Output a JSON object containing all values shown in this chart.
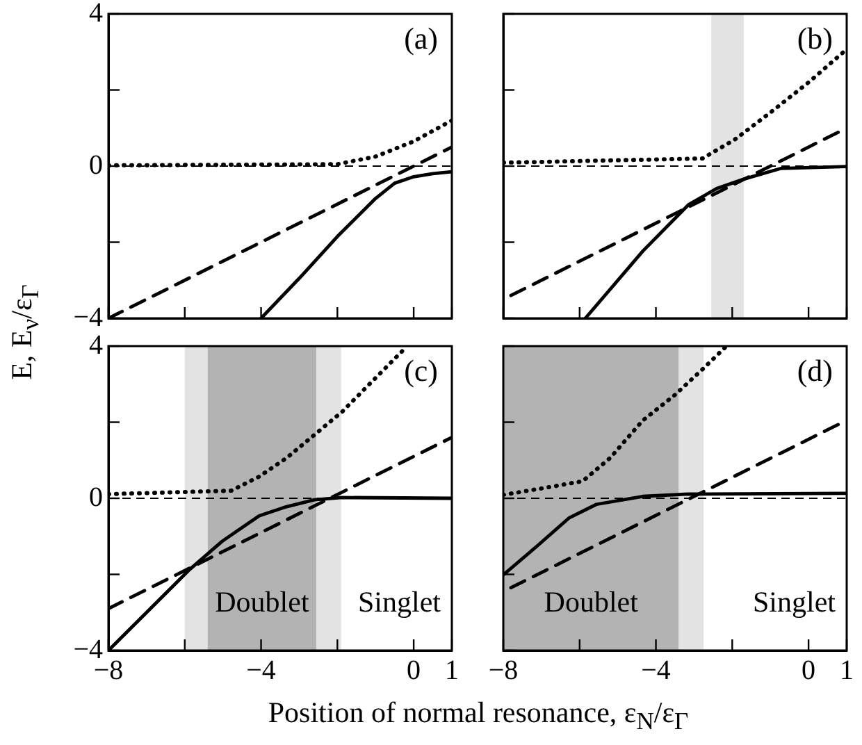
{
  "chart_data": [
    {
      "type": "line",
      "title": "(a)",
      "ylabel": "E, E$_{ν}$/ε$_{Γ}$",
      "xlim": [
        -8,
        1
      ],
      "ylim": [
        -4,
        4
      ],
      "xticks": [
        {
          "value": -8,
          "label": null
        },
        {
          "value": -6,
          "label": null
        },
        {
          "value": -4,
          "label": null
        },
        {
          "value": -2,
          "label": null
        },
        {
          "value": 0,
          "label": null
        },
        {
          "value": 1,
          "label": null
        }
      ],
      "yticks": [
        {
          "value": -4,
          "label": "−4"
        },
        {
          "value": -2,
          "label": null
        },
        {
          "value": 0,
          "label": "0"
        },
        {
          "value": 2,
          "label": null
        },
        {
          "value": 4,
          "label": "4"
        }
      ],
      "tick_labels": "y",
      "grid": false,
      "legend": false,
      "marker": "none",
      "ref_lines": [
        {
          "axis": "y",
          "value": 0,
          "color": "#000000",
          "line_style": "dashed"
        }
      ],
      "series": [
        {
          "type": "line",
          "color": "#000000",
          "line_style": "solid",
          "x": [
            -4,
            -3,
            -2,
            -1,
            -0.5,
            0,
            0.5,
            1
          ],
          "values": [
            -4,
            -2.95,
            -1.85,
            -0.85,
            -0.45,
            -0.28,
            -0.2,
            -0.15
          ]
        },
        {
          "type": "line",
          "color": "#000000",
          "line_style": "dashed",
          "x": [
            -8,
            1
          ],
          "values": [
            -4,
            0.5
          ]
        },
        {
          "type": "line",
          "color": "#000000",
          "line_style": "dotted",
          "x": [
            -8,
            -2,
            -1,
            0,
            1
          ],
          "values": [
            0.02,
            0.05,
            0.25,
            0.65,
            1.2
          ]
        }
      ]
    },
    {
      "type": "line",
      "title": "(b)",
      "xlim": [
        -8,
        1
      ],
      "ylim": [
        -4,
        4
      ],
      "xticks": [
        {
          "value": -8,
          "label": null
        },
        {
          "value": -6,
          "label": null
        },
        {
          "value": -4,
          "label": null
        },
        {
          "value": -2,
          "label": null
        },
        {
          "value": 0,
          "label": null
        },
        {
          "value": 1,
          "label": null
        }
      ],
      "yticks": [
        {
          "value": -4,
          "label": null
        },
        {
          "value": -2,
          "label": null
        },
        {
          "value": 0,
          "label": null
        },
        {
          "value": 2,
          "label": null
        },
        {
          "value": 4,
          "label": null
        }
      ],
      "tick_labels": false,
      "grid": false,
      "legend": false,
      "marker": "none",
      "ref_lines": [
        {
          "axis": "y",
          "value": 0,
          "color": "#000000",
          "line_style": "dashed"
        }
      ],
      "bands": [
        {
          "axis": "x",
          "from": -2.55,
          "to": -1.7,
          "color": "#e3e3e3"
        }
      ],
      "series": [
        {
          "type": "line",
          "color": "#000000",
          "line_style": "solid",
          "x": [
            -5.85,
            -4.34,
            -3.14,
            -2.41,
            -1.69,
            -0.72,
            1
          ],
          "values": [
            -4,
            -2.23,
            -1.01,
            -0.59,
            -0.34,
            -0.06,
            -0.01
          ]
        },
        {
          "type": "line",
          "color": "#000000",
          "line_style": "dashed",
          "x": [
            -7.8,
            1
          ],
          "values": [
            -3.4,
            1
          ]
        },
        {
          "type": "line",
          "color": "#000000",
          "line_style": "dotted",
          "x": [
            -8,
            -2.78,
            -1.93,
            -0.97,
            0,
            1
          ],
          "values": [
            0.09,
            0.2,
            0.7,
            1.43,
            2.2,
            3.07
          ]
        }
      ]
    },
    {
      "type": "line",
      "title": "(c)",
      "xlabel": "Position of normal resonance, ε$_{N}$/ε$_{Γ}$",
      "xlim": [
        -8,
        1
      ],
      "ylim": [
        -4,
        4
      ],
      "xticks": [
        {
          "value": -8,
          "label": "−8"
        },
        {
          "value": -6,
          "label": null
        },
        {
          "value": -4,
          "label": "−4"
        },
        {
          "value": -2,
          "label": null
        },
        {
          "value": 0,
          "label": "0"
        },
        {
          "value": 1,
          "label": "1"
        }
      ],
      "yticks": [
        {
          "value": -4,
          "label": "−4"
        },
        {
          "value": -2,
          "label": null
        },
        {
          "value": 0,
          "label": "0"
        },
        {
          "value": 2,
          "label": null
        },
        {
          "value": 4,
          "label": "4"
        }
      ],
      "grid": false,
      "legend": false,
      "marker": "none",
      "ref_lines": [
        {
          "axis": "y",
          "value": 0,
          "color": "#000000",
          "line_style": "dashed"
        }
      ],
      "bands": [
        {
          "axis": "x",
          "from": -6,
          "to": -5.4,
          "color": "#e3e3e3"
        },
        {
          "axis": "x",
          "from": -5.4,
          "to": -2.55,
          "color": "#b3b3b3",
          "label": "Doublet"
        },
        {
          "axis": "x",
          "from": -2.55,
          "to": -1.9,
          "color": "#e3e3e3"
        }
      ],
      "annotations": [
        "Singlet"
      ],
      "series": [
        {
          "type": "line",
          "color": "#000000",
          "line_style": "solid",
          "x": [
            -8,
            -5.87,
            -5.02,
            -4.05,
            -3.33,
            -2.6,
            -1.87,
            1
          ],
          "values": [
            -4,
            -1.87,
            -1.13,
            -0.46,
            -0.22,
            -0.04,
            0.02,
            0
          ]
        },
        {
          "type": "line",
          "color": "#000000",
          "line_style": "dashed",
          "x": [
            -8,
            1
          ],
          "values": [
            -2.9,
            1.6
          ]
        },
        {
          "type": "line",
          "color": "#000000",
          "line_style": "dotted",
          "x": [
            -8,
            -4.78,
            -4.05,
            -3.33,
            -2.6,
            -1.87,
            -1.15,
            -0.18
          ],
          "values": [
            0.11,
            0.2,
            0.57,
            1.06,
            1.67,
            2.28,
            3.01,
            3.99
          ]
        }
      ]
    },
    {
      "type": "line",
      "title": "(d)",
      "xlim": [
        -8,
        1
      ],
      "ylim": [
        -4,
        4
      ],
      "xticks": [
        {
          "value": -8,
          "label": "−8"
        },
        {
          "value": -6,
          "label": null
        },
        {
          "value": -4,
          "label": "−4"
        },
        {
          "value": -2,
          "label": null
        },
        {
          "value": 0,
          "label": "0"
        },
        {
          "value": 1,
          "label": "1"
        }
      ],
      "yticks": [
        {
          "value": -4,
          "label": null
        },
        {
          "value": -2,
          "label": null
        },
        {
          "value": 0,
          "label": null
        },
        {
          "value": 2,
          "label": null
        },
        {
          "value": 4,
          "label": null
        }
      ],
      "tick_labels": "x",
      "grid": false,
      "legend": false,
      "marker": "none",
      "ref_lines": [
        {
          "axis": "y",
          "value": 0,
          "color": "#000000",
          "line_style": "dashed"
        }
      ],
      "bands": [
        {
          "axis": "x",
          "from": -8,
          "to": -3.4,
          "color": "#b3b3b3",
          "label": "Doublet"
        },
        {
          "axis": "x",
          "from": -3.4,
          "to": -2.75,
          "color": "#e3e3e3"
        }
      ],
      "annotations": [
        "Singlet"
      ],
      "series": [
        {
          "type": "line",
          "color": "#000000",
          "line_style": "solid",
          "x": [
            -8,
            -7.12,
            -6.28,
            -5.56,
            -4.35,
            -3.15,
            1
          ],
          "values": [
            -2.01,
            -1.26,
            -0.52,
            -0.16,
            0.05,
            0.11,
            0.13
          ]
        },
        {
          "type": "line",
          "color": "#000000",
          "line_style": "dashed",
          "x": [
            -7.8,
            1
          ],
          "values": [
            -2.35,
            2.05
          ]
        },
        {
          "type": "line",
          "color": "#000000",
          "line_style": "dotted",
          "x": [
            -8,
            -6.76,
            -5.92,
            -5.2,
            -4.35,
            -3.51,
            -2.79,
            -2.15
          ],
          "values": [
            0.09,
            0.3,
            0.45,
            1.06,
            2.04,
            2.71,
            3.38,
            4
          ]
        }
      ]
    }
  ]
}
